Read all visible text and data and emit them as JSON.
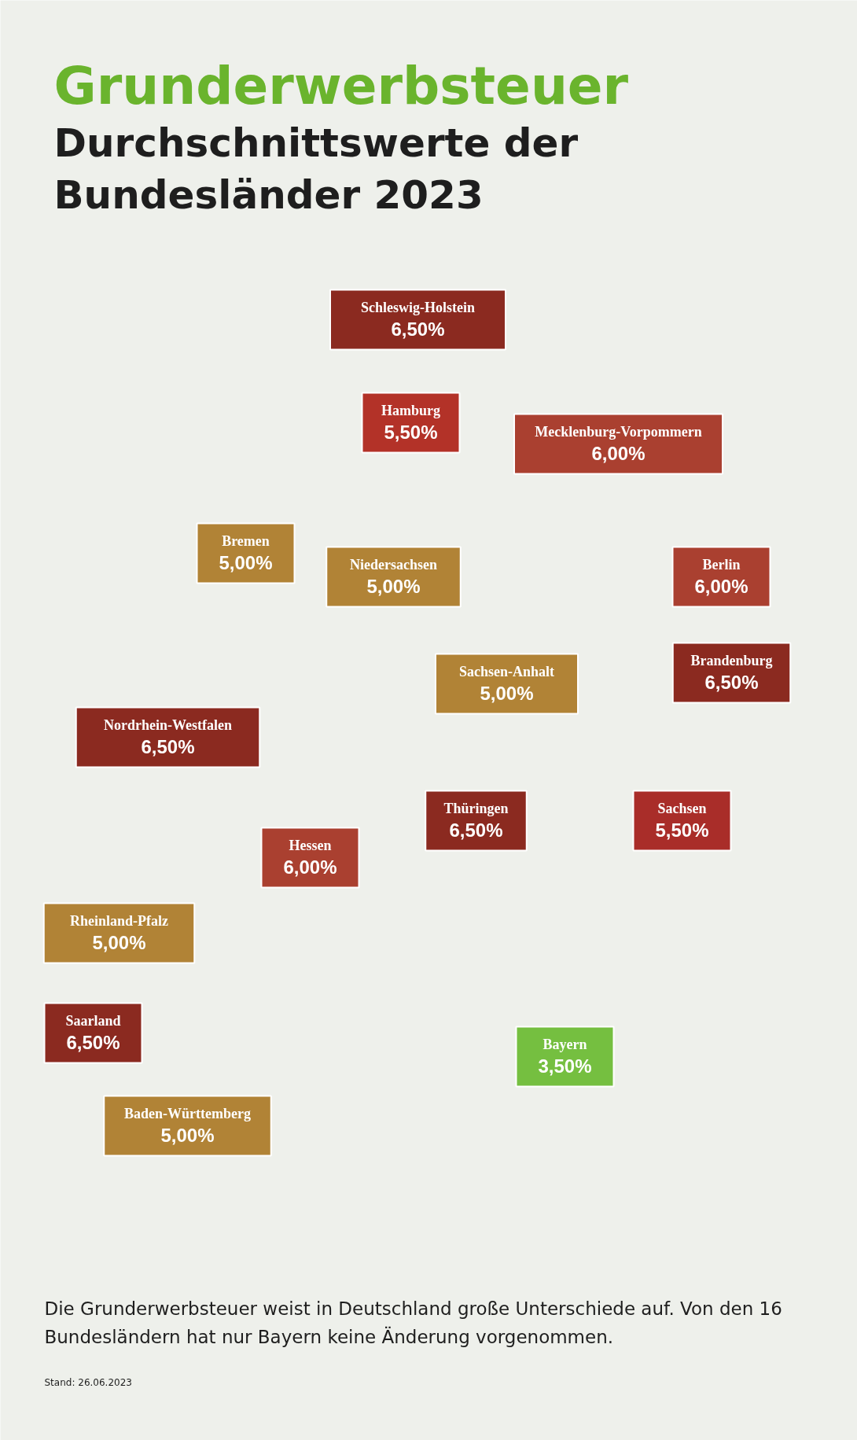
{
  "chart_data": {
    "type": "other",
    "title": "Grunderwerbsteuer",
    "subtitle": "Durchschnittswerte der Bundesländer 2023",
    "categories": [
      "Schleswig-Holstein",
      "Hamburg",
      "Mecklenburg-Vorpommern",
      "Bremen",
      "Niedersachsen",
      "Berlin",
      "Brandenburg",
      "Sachsen-Anhalt",
      "Nordrhein-Westfalen",
      "Thüringen",
      "Sachsen",
      "Hessen",
      "Rheinland-Pfalz",
      "Saarland",
      "Bayern",
      "Baden-Württemberg"
    ],
    "values": [
      6.5,
      5.5,
      6.0,
      5.0,
      5.0,
      6.0,
      6.5,
      5.0,
      6.5,
      6.5,
      5.5,
      6.0,
      5.0,
      6.5,
      3.5,
      5.0
    ],
    "value_labels": [
      "6,50%",
      "5,50%",
      "6,00%",
      "5,00%",
      "5,00%",
      "6,00%",
      "6,50%",
      "5,00%",
      "6,50%",
      "6,50%",
      "5,50%",
      "6,00%",
      "5,00%",
      "6,50%",
      "3,50%",
      "5,00%"
    ],
    "colors": [
      "#8b2a20",
      "#b02a1f",
      "#a83c2c",
      "#ad7b2a",
      "#ad7b2a",
      "#a83c2c",
      "#8b2a20",
      "#ad7b2a",
      "#8b2a20",
      "#8b2a20",
      "#a52420",
      "#a83c2c",
      "#ad7b2a",
      "#8b2a20",
      "#66b82a",
      "#ad7b2a"
    ],
    "annotations": [
      "Die Grunderwerbsteuer weist in Deutschland große Unterschiede auf. Von den 16 Bundesländern hat nur Bayern keine Änderung vorgenommen.",
      "Stand: 26.06.2023"
    ]
  }
}
